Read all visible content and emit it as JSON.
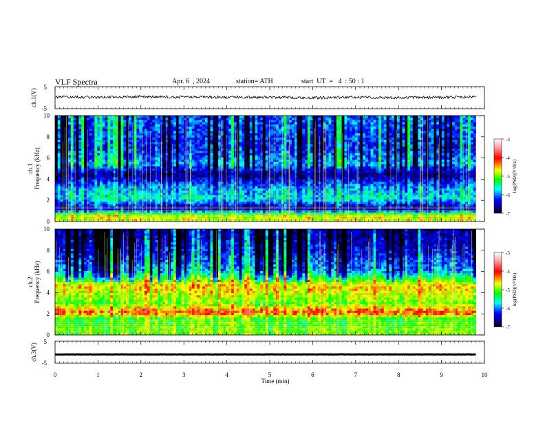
{
  "header": {
    "title": "VLF  Spectra",
    "date": "Apr. 6  , 2024",
    "station": "station= ATH",
    "start": "start  UT  =   4  : 50 : 1"
  },
  "panels": {
    "ch1_waveform": {
      "ylabel": "ch.1(V)",
      "ticks": [
        "5",
        "-5"
      ]
    },
    "ch1_spectrogram": {
      "ylabel_ch": "ch.1",
      "ylabel_freq": "Frequency  (kHz)",
      "yticks": [
        "0",
        "2",
        "4",
        "6",
        "8",
        "10"
      ]
    },
    "ch2_spectrogram": {
      "ylabel_ch": "ch.2",
      "ylabel_freq": "Frequency  (kHz)",
      "yticks": [
        "0",
        "2",
        "4",
        "6",
        "8",
        "10"
      ]
    },
    "ch3_waveform": {
      "ylabel": "ch.3(V)",
      "ticks": [
        "5",
        "-5"
      ]
    }
  },
  "colorbar": {
    "label": "log(PSD)(V²/Hz)",
    "ticks": [
      "-3",
      "-4",
      "-5",
      "-6",
      "-7"
    ],
    "colors": [
      "#ffffff",
      "#ff0000",
      "#ffff00",
      "#00ff00",
      "#00ffff",
      "#0000ff",
      "#000000"
    ]
  },
  "xaxis": {
    "label": "Time  (min)",
    "ticks": [
      "0",
      "1",
      "2",
      "3",
      "4",
      "5",
      "6",
      "7",
      "8",
      "9",
      "10"
    ]
  },
  "chart_data": [
    {
      "type": "line",
      "name": "ch.1 waveform",
      "xlim": [
        0,
        10
      ],
      "ylim": [
        -5,
        5
      ],
      "x": [
        0,
        1,
        2,
        3,
        4,
        5,
        6,
        7,
        8,
        9,
        9.8
      ],
      "y": [
        0.3,
        0.2,
        0.4,
        0.3,
        0.2,
        0.3,
        -0.1,
        0.2,
        0,
        0.2,
        0.3
      ]
    },
    {
      "type": "heatmap",
      "name": "ch.1 spectrogram",
      "xlim": [
        0,
        10
      ],
      "ylim": [
        0,
        10
      ],
      "data_end_min": 9.8,
      "frequency_khz": [
        0.5,
        1.2,
        2.2,
        3.2,
        4.4,
        5.5,
        7,
        9
      ],
      "log_psd": [
        -4.5,
        -6.5,
        -5.5,
        -5.8,
        -6.6,
        -5.8,
        -6.2,
        -6.0
      ]
    },
    {
      "type": "heatmap",
      "name": "ch.2 spectrogram",
      "xlim": [
        0,
        10
      ],
      "ylim": [
        0,
        10
      ],
      "data_end_min": 9.8,
      "frequency_khz": [
        0.5,
        1.5,
        2.1,
        3.0,
        4.6,
        6,
        8,
        9.5
      ],
      "log_psd": [
        -4.8,
        -5.0,
        -3.8,
        -4.8,
        -4.2,
        -5.8,
        -6.3,
        -6.5
      ]
    },
    {
      "type": "line",
      "name": "ch.3 waveform",
      "xlim": [
        0,
        10
      ],
      "ylim": [
        -5,
        5
      ],
      "x": [
        0,
        9.8
      ],
      "y": [
        -1,
        -1
      ]
    }
  ]
}
